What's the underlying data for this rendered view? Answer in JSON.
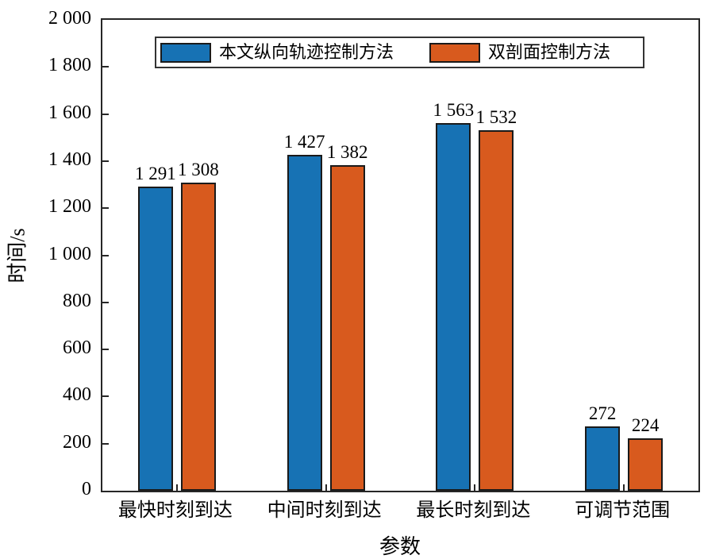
{
  "chart_data": {
    "type": "bar",
    "title": "",
    "xlabel": "参数",
    "ylabel": "时间/s",
    "ylim": [
      0,
      2000
    ],
    "ytick_step": 200,
    "grid": false,
    "legend_position": "top-inside",
    "number_format": "space-thousands",
    "bar_labels_visible": true,
    "categories": [
      "最快时刻到达",
      "中间时刻到达",
      "最长时刻到达",
      "可调节范围"
    ],
    "series": [
      {
        "name": "本文纵向轨迹控制方法",
        "color": "#1772b4",
        "values": [
          1291,
          1427,
          1563,
          272
        ]
      },
      {
        "name": "双剖面控制方法",
        "color": "#d85a1e",
        "values": [
          1308,
          1382,
          1532,
          224
        ]
      }
    ]
  },
  "colors": {
    "axis": "#262626",
    "background": "#ffffff",
    "text": "#000000",
    "series_blue": "#1772b4",
    "series_orange": "#d85a1e"
  }
}
